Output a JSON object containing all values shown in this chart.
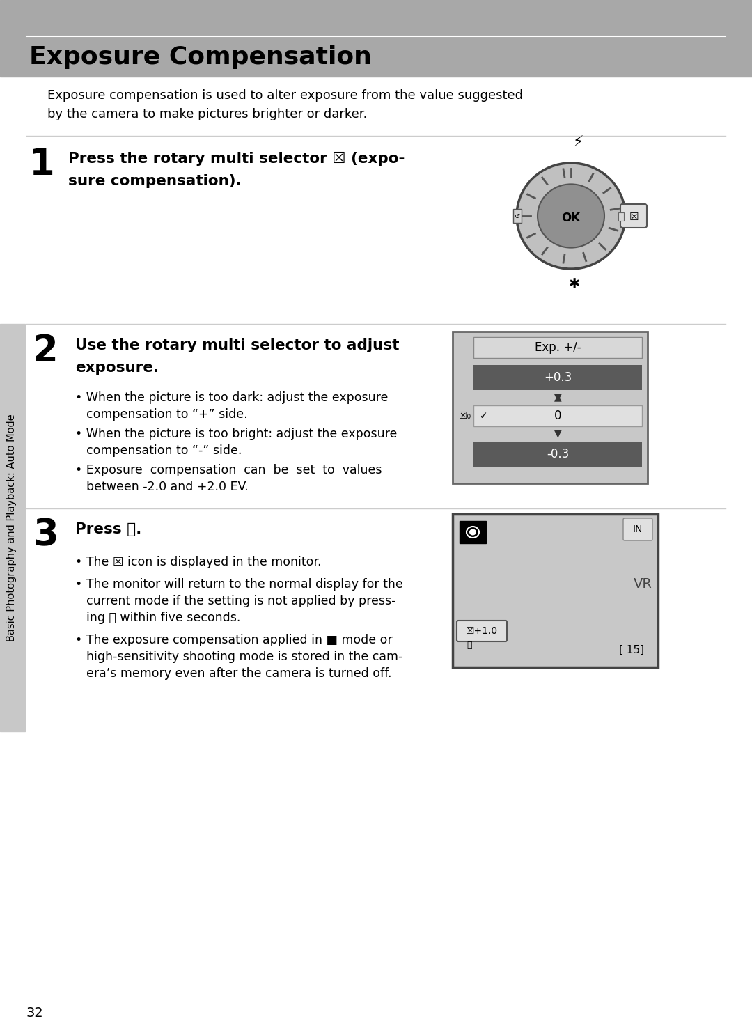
{
  "title": "Exposure Compensation",
  "bg_color": "#ffffff",
  "header_bg": "#a8a8a8",
  "intro_text_line1": "Exposure compensation is used to alter exposure from the value suggested",
  "intro_text_line2": "by the camera to make pictures brighter or darker.",
  "step1_num": "1",
  "step1_text": "Press the rotary multi selector  (expo-\nsure compensation).",
  "step2_num": "2",
  "step2_title_line1": "Use the rotary multi selector to adjust",
  "step2_title_line2": "exposure.",
  "step2_b1_line1": "When the picture is too dark: adjust the exposure",
  "step2_b1_line2": "compensation to “+” side.",
  "step2_b2_line1": "When the picture is too bright: adjust the exposure",
  "step2_b2_line2": "compensation to “-” side.",
  "step2_b3_line1": "Exposure  compensation  can  be  set  to  values",
  "step2_b3_line2": "between -2.0 and +2.0 EV.",
  "step3_num": "3",
  "step3_title": "Press  .",
  "step3_b1": "The   icon is displayed in the monitor.",
  "step3_b2_line1": "The monitor will return to the normal display for the",
  "step3_b2_line2": "current mode if the setting is not applied by press-",
  "step3_b2_line3": "ing   within five seconds.",
  "step3_b3_line1": "The exposure compensation applied in   mode or",
  "step3_b3_line2": "high-sensitivity shooting mode is stored in the cam-",
  "step3_b3_line3": "era’s memory even after the camera is turned off.",
  "sidebar_text": "Basic Photography and Playback: Auto Mode",
  "page_num": "32",
  "sep_color": "#cccccc",
  "sidebar_color": "#c8c8c8",
  "dial_color": "#c0c0c0",
  "dial_inner_color": "#909090",
  "box_bg": "#d0d0d0",
  "box_row_dark": "#606060",
  "box_row_light": "#e8e8e8",
  "screen_bg": "#c8c8c8"
}
